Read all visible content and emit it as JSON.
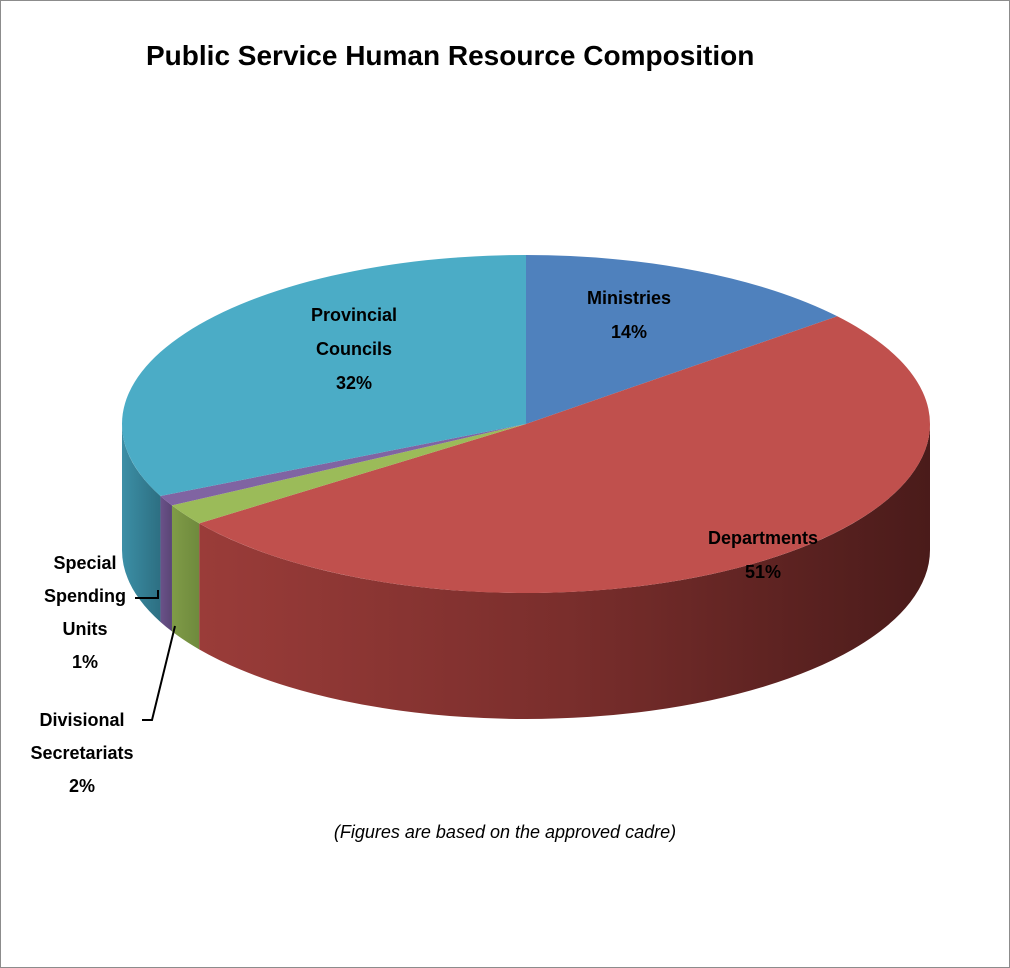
{
  "chart_data": {
    "type": "pie",
    "title": "Public Service Human Resource Composition",
    "note": "(Figures are based on the approved  cadre)",
    "slices": [
      {
        "label": "Ministries",
        "value": 14,
        "value_label": "14%",
        "color": "#4f81bd"
      },
      {
        "label": "Departments",
        "value": 51,
        "value_label": "51%",
        "color": "#c0504d"
      },
      {
        "label": "Divisional Secretariats",
        "value": 2,
        "value_label": "2%",
        "color": "#9bbb59"
      },
      {
        "label": "Special Spending Units",
        "value": 1,
        "value_label": "1%",
        "color": "#8064a2"
      },
      {
        "label": "Provincial Councils",
        "value": 32,
        "value_label": "32%",
        "color": "#4bacc6"
      }
    ]
  }
}
